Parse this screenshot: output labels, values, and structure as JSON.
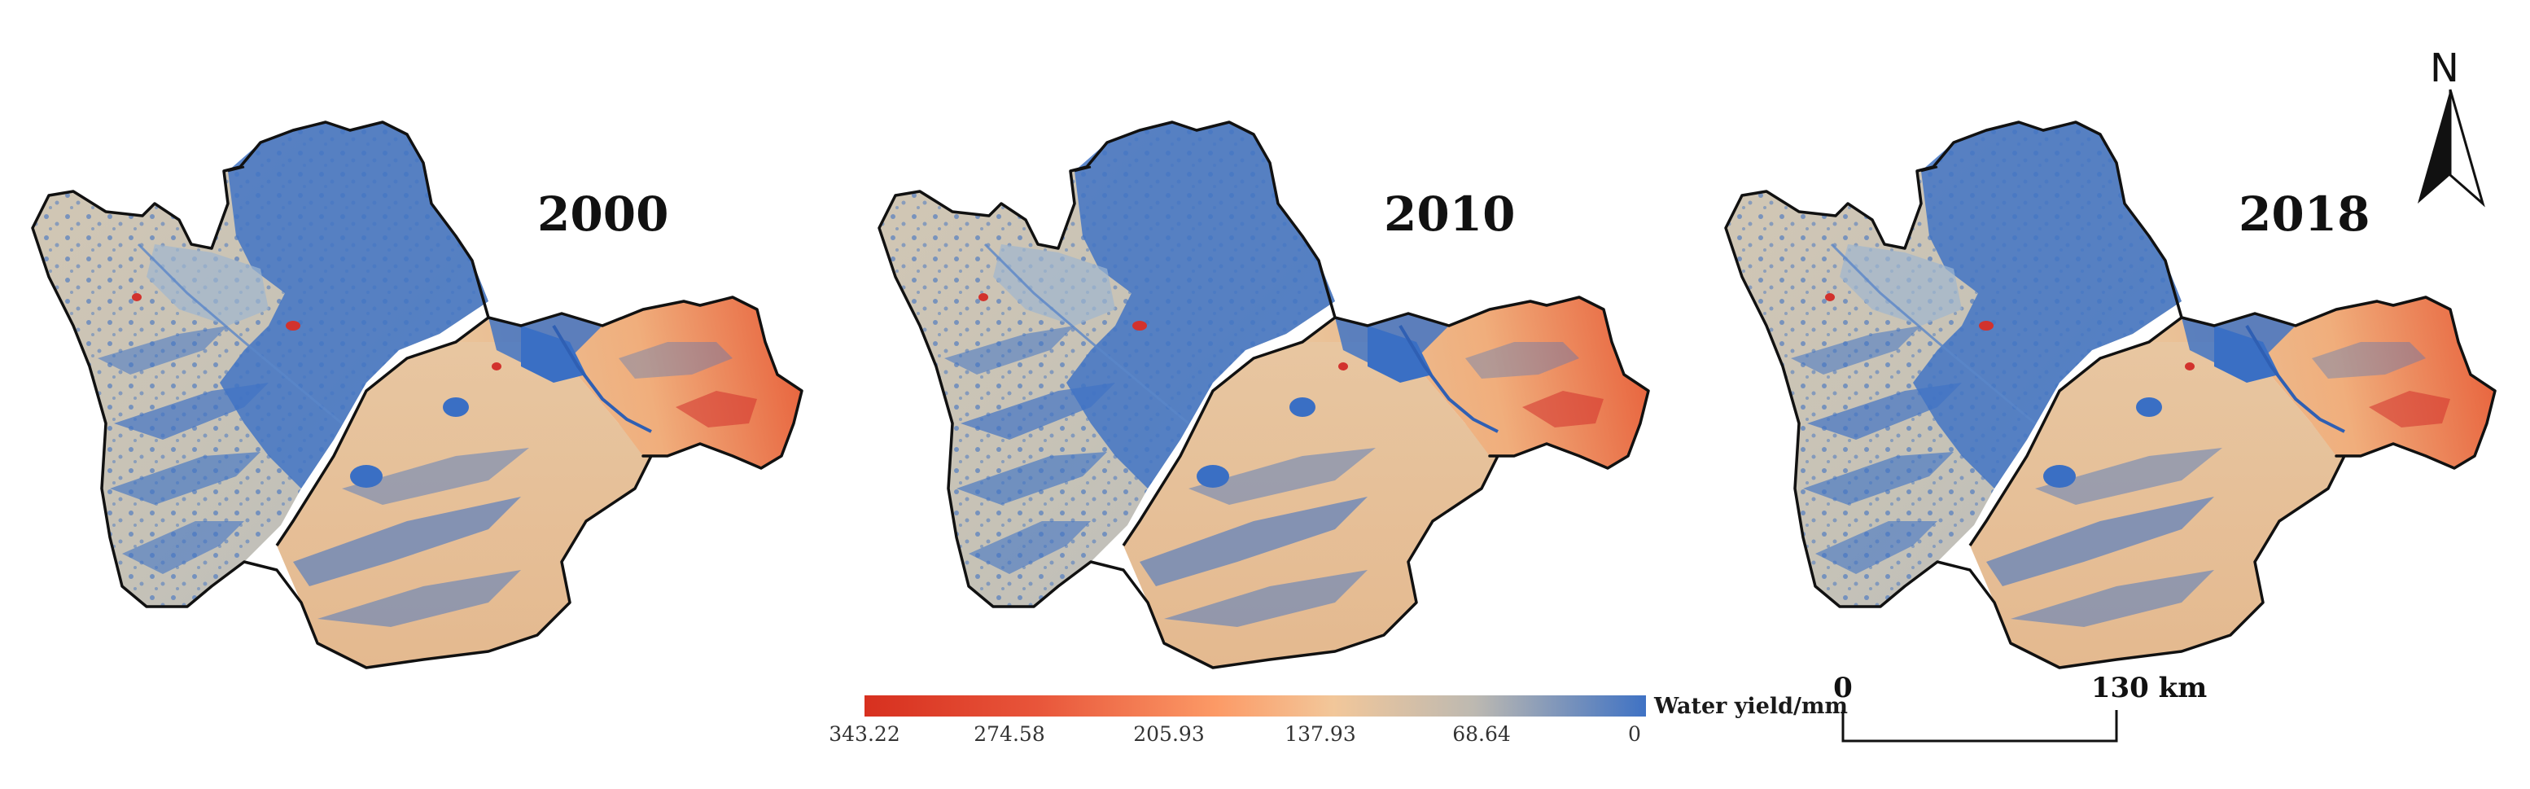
{
  "colors": {
    "high": "#d7301f",
    "mid_high": "#fc8d59",
    "mid": "#f7c697",
    "mid_low": "#cbbfae",
    "low_mid": "#93b2cf",
    "low": "#3a6fc4",
    "outline": "#111111",
    "lake_red": "#d2322d"
  },
  "panels": [
    {
      "year": "2000"
    },
    {
      "year": "2010"
    },
    {
      "year": "2018"
    }
  ],
  "legend": {
    "title": "Water yield/mm",
    "ticks": [
      "343.22",
      "274.58",
      "205.93",
      "137.93",
      "68.64",
      "0"
    ]
  },
  "scale_bar": {
    "start_label": "0",
    "end_label": "130 km"
  },
  "north_arrow": {
    "label": "N"
  }
}
